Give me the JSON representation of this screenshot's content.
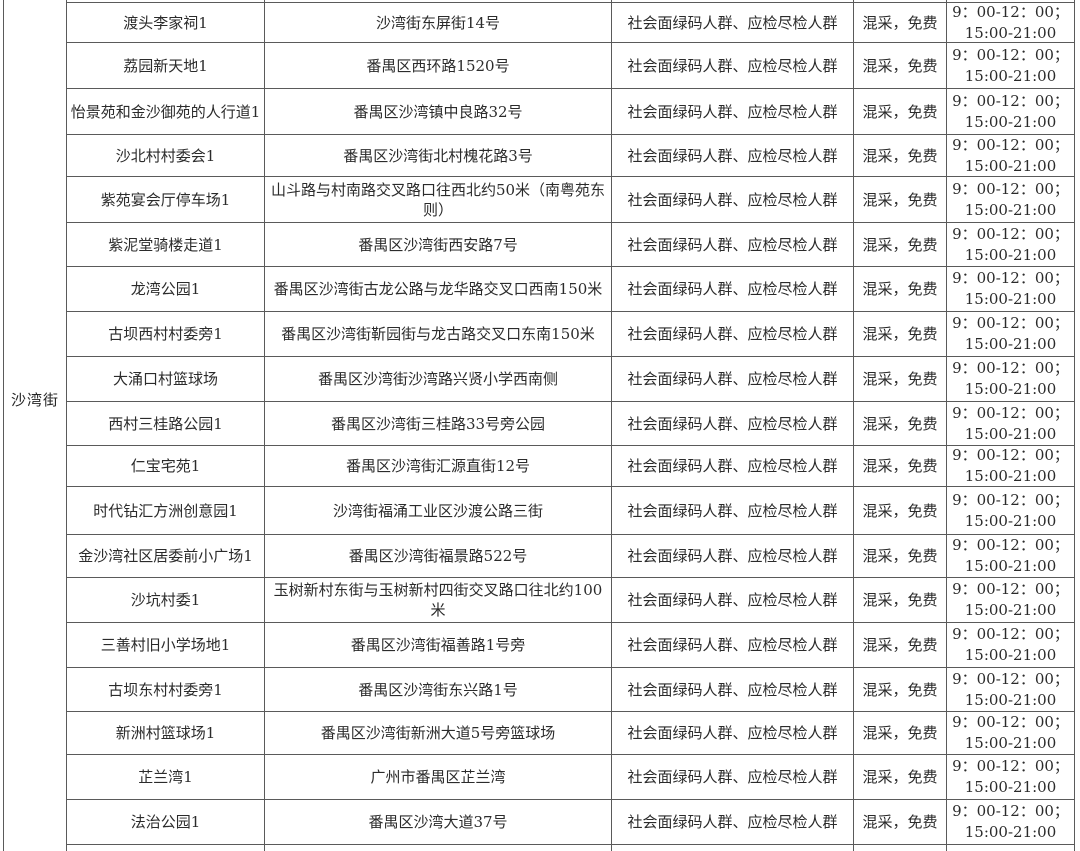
{
  "district_label": "沙湾街",
  "table": {
    "rows": [
      {
        "name": "渡头李家祠1",
        "address": "沙湾街东屏街14号",
        "crowd": "社会面绿码人群、应检尽检人群",
        "method": "混采，免费",
        "time_line1": "9：00-12：00；",
        "time_line2": "15:00-21:00"
      },
      {
        "name": "荔园新天地1",
        "address": "番禺区西环路1520号",
        "crowd": "社会面绿码人群、应检尽检人群",
        "method": "混采，免费",
        "time_line1": "9：00-12：00；",
        "time_line2": "15:00-21:00"
      },
      {
        "name": "怡景苑和金沙御苑的人行道1",
        "address": "番禺区沙湾镇中良路32号",
        "crowd": "社会面绿码人群、应检尽检人群",
        "method": "混采，免费",
        "time_line1": "9：00-12：00；",
        "time_line2": "15:00-21:00"
      },
      {
        "name": "沙北村村委会1",
        "address": "番禺区沙湾街北村槐花路3号",
        "crowd": "社会面绿码人群、应检尽检人群",
        "method": "混采，免费",
        "time_line1": "9：00-12：00；",
        "time_line2": "15:00-21:00"
      },
      {
        "name": "紫苑宴会厅停车场1",
        "address": "山斗路与村南路交叉路口往西北约50米（南粤苑东则）",
        "crowd": "社会面绿码人群、应检尽检人群",
        "method": "混采，免费",
        "time_line1": "9：00-12：00；",
        "time_line2": "15:00-21:00"
      },
      {
        "name": "紫泥堂骑楼走道1",
        "address": "番禺区沙湾街西安路7号",
        "crowd": "社会面绿码人群、应检尽检人群",
        "method": "混采，免费",
        "time_line1": "9：00-12：00；",
        "time_line2": "15:00-21:00"
      },
      {
        "name": "龙湾公园1",
        "address": "番禺区沙湾街古龙公路与龙华路交叉口西南150米",
        "crowd": "社会面绿码人群、应检尽检人群",
        "method": "混采，免费",
        "time_line1": "9：00-12：00；",
        "time_line2": "15:00-21:00"
      },
      {
        "name": "古坝西村村委旁1",
        "address": "番禺区沙湾街靳园街与龙古路交叉口东南150米",
        "crowd": "社会面绿码人群、应检尽检人群",
        "method": "混采，免费",
        "time_line1": "9：00-12：00；",
        "time_line2": "15:00-21:00"
      },
      {
        "name": "大涌口村篮球场",
        "address": "番禺区沙湾街沙湾路兴贤小学西南侧",
        "crowd": "社会面绿码人群、应检尽检人群",
        "method": "混采，免费",
        "time_line1": "9：00-12：00；",
        "time_line2": "15:00-21:00"
      },
      {
        "name": "西村三桂路公园1",
        "address": "番禺区沙湾街三桂路33号旁公园",
        "crowd": "社会面绿码人群、应检尽检人群",
        "method": "混采，免费",
        "time_line1": "9：00-12：00；",
        "time_line2": "15:00-21:00"
      },
      {
        "name": "仁宝宅苑1",
        "address": "番禺区沙湾街汇源直街12号",
        "crowd": "社会面绿码人群、应检尽检人群",
        "method": "混采，免费",
        "time_line1": "9：00-12：00；",
        "time_line2": "15:00-21:00"
      },
      {
        "name": "时代钻汇方洲创意园1",
        "address": "沙湾街福涌工业区沙渡公路三街",
        "crowd": "社会面绿码人群、应检尽检人群",
        "method": "混采，免费",
        "time_line1": "9：00-12：00；",
        "time_line2": "15:00-21:00"
      },
      {
        "name": "金沙湾社区居委前小广场1",
        "address": "番禺区沙湾街福景路522号",
        "crowd": "社会面绿码人群、应检尽检人群",
        "method": "混采，免费",
        "time_line1": "9：00-12：00；",
        "time_line2": "15:00-21:00"
      },
      {
        "name": "沙坑村委1",
        "address": "玉树新村东街与玉树新村四街交叉路口往北约100米",
        "crowd": "社会面绿码人群、应检尽检人群",
        "method": "混采，免费",
        "time_line1": "9：00-12：00；",
        "time_line2": "15:00-21:00"
      },
      {
        "name": "三善村旧小学场地1",
        "address": "番禺区沙湾街福善路1号旁",
        "crowd": "社会面绿码人群、应检尽检人群",
        "method": "混采，免费",
        "time_line1": "9：00-12：00；",
        "time_line2": "15:00-21:00"
      },
      {
        "name": "古坝东村村委旁1",
        "address": "番禺区沙湾街东兴路1号",
        "crowd": "社会面绿码人群、应检尽检人群",
        "method": "混采，免费",
        "time_line1": "9：00-12：00；",
        "time_line2": "15:00-21:00"
      },
      {
        "name": "新洲村篮球场1",
        "address": "番禺区沙湾街新洲大道5号旁篮球场",
        "crowd": "社会面绿码人群、应检尽检人群",
        "method": "混采，免费",
        "time_line1": "9：00-12：00；",
        "time_line2": "15:00-21:00"
      },
      {
        "name": "芷兰湾1",
        "address": "广州市番禺区芷兰湾",
        "crowd": "社会面绿码人群、应检尽检人群",
        "method": "混采，免费",
        "time_line1": "9：00-12：00；",
        "time_line2": "15:00-21:00"
      },
      {
        "name": "法治公园1",
        "address": "番禺区沙湾大道37号",
        "crowd": "社会面绿码人群、应检尽检人群",
        "method": "混采，免费",
        "time_line1": "9：00-12：00；",
        "time_line2": "15:00-21:00"
      }
    ]
  }
}
